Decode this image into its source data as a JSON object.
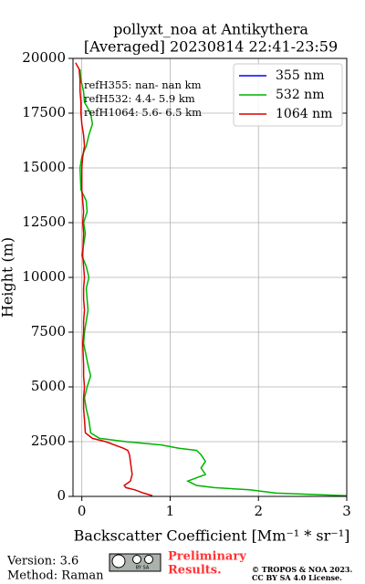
{
  "chart_data": {
    "type": "line",
    "title": "pollyxt_noa at Antikythera",
    "subtitle": "[Averaged] 20230814 22:41-23:59",
    "x_label": "Backscatter Coefficient [Mm⁻¹ * sr⁻¹]",
    "y_label": "Height (m)",
    "annotations": [
      "refH355:  nan- nan km",
      "refH532:  4.4- 5.9 km",
      "refH1064:  5.6- 6.5 km"
    ],
    "y": [
      30,
      150,
      300,
      400,
      500,
      700,
      1000,
      1300,
      1600,
      1900,
      2100,
      2200,
      2350,
      2500,
      2650,
      2900,
      3500,
      4000,
      4500,
      5000,
      5500,
      6000,
      7000,
      7500,
      8000,
      8500,
      9000,
      9500,
      10000,
      10500,
      11000,
      12000,
      12500,
      13000,
      13500,
      14000,
      15000,
      15500,
      16000,
      16500,
      17000,
      17500,
      18000,
      18500,
      19000,
      19500,
      19800
    ],
    "series": [
      {
        "name": "355 nm",
        "color": "#0000ff",
        "values": [
          null,
          null,
          null,
          null,
          null,
          null,
          null,
          null,
          null,
          null,
          null,
          null,
          null,
          null,
          null,
          null,
          null,
          null,
          null,
          null,
          null,
          null,
          null,
          null,
          null,
          null,
          null,
          null,
          null,
          null,
          null,
          null,
          null,
          null,
          null,
          null,
          null,
          null,
          null,
          null,
          null,
          null,
          null,
          null,
          null,
          null,
          null
        ]
      },
      {
        "name": "532 nm",
        "color": "#00b400",
        "values": [
          3.0,
          2.2,
          1.9,
          1.5,
          1.3,
          1.2,
          1.4,
          1.35,
          1.4,
          1.35,
          1.3,
          1.1,
          0.9,
          0.5,
          0.2,
          0.1,
          0.08,
          0.05,
          0.03,
          0.06,
          0.1,
          0.07,
          0.02,
          0.03,
          0.05,
          0.07,
          0.06,
          0.05,
          0.08,
          0.05,
          0.0,
          0.04,
          0.02,
          0.06,
          0.05,
          -0.01,
          -0.02,
          0.0,
          0.05,
          0.08,
          0.12,
          0.1,
          0.03,
          0.02,
          -0.01,
          -0.02,
          null
        ]
      },
      {
        "name": "1064 nm",
        "color": "#dd0000",
        "values": [
          0.8,
          0.7,
          0.6,
          0.5,
          0.48,
          0.55,
          0.57,
          0.56,
          0.55,
          0.54,
          0.52,
          0.47,
          0.37,
          0.27,
          0.12,
          0.04,
          0.03,
          0.02,
          0.02,
          0.03,
          0.02,
          0.02,
          0.01,
          0.02,
          0.02,
          0.03,
          0.02,
          0.02,
          0.03,
          0.02,
          0.01,
          0.02,
          0.01,
          0.02,
          0.01,
          0.0,
          0.0,
          0.01,
          0.03,
          0.02,
          0.0,
          -0.01,
          -0.01,
          -0.02,
          -0.02,
          -0.03,
          -0.07
        ]
      }
    ],
    "xlim": [
      -0.1,
      3
    ],
    "xticks": [
      0,
      1,
      2,
      3
    ],
    "ylim": [
      0,
      20000
    ],
    "yticks": [
      0,
      2500,
      5000,
      7500,
      10000,
      12500,
      15000,
      17500,
      20000
    ],
    "grid": true,
    "legend": "upper right"
  },
  "footer": {
    "version": "Version: 3.6",
    "method": "Method: Raman",
    "badge": "BY SA",
    "preliminary": [
      "Preliminary",
      "Results."
    ],
    "copyright": [
      "© TROPOS & NOA 2023.",
      "CC BY SA 4.0 License."
    ]
  }
}
